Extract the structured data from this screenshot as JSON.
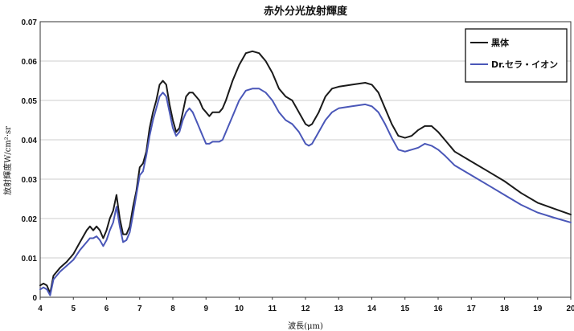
{
  "chart_data": {
    "type": "line",
    "title": "赤外分光放射輝度",
    "xlabel": "波長(μm)",
    "ylabel": "放射輝度W/cm²·sr",
    "xlim": [
      4,
      20
    ],
    "ylim": [
      0,
      0.07
    ],
    "x_ticks": [
      "4",
      "5",
      "6",
      "7",
      "8",
      "9",
      "10",
      "11",
      "12",
      "13",
      "14",
      "15",
      "16",
      "17",
      "18",
      "19",
      "20"
    ],
    "y_ticks": [
      "0",
      "0.01",
      "0.02",
      "0.03",
      "0.04",
      "0.05",
      "0.06",
      "0.07"
    ],
    "grid": true,
    "legend_position": "top-right",
    "series": [
      {
        "name": "黒体",
        "color": "#1a1a1a",
        "points": [
          [
            4.0,
            0.003
          ],
          [
            4.1,
            0.0035
          ],
          [
            4.2,
            0.003
          ],
          [
            4.3,
            0.001
          ],
          [
            4.4,
            0.0055
          ],
          [
            4.6,
            0.0075
          ],
          [
            4.8,
            0.009
          ],
          [
            5.0,
            0.011
          ],
          [
            5.2,
            0.014
          ],
          [
            5.4,
            0.017
          ],
          [
            5.5,
            0.018
          ],
          [
            5.6,
            0.017
          ],
          [
            5.7,
            0.018
          ],
          [
            5.8,
            0.017
          ],
          [
            5.9,
            0.015
          ],
          [
            6.0,
            0.017
          ],
          [
            6.1,
            0.02
          ],
          [
            6.2,
            0.022
          ],
          [
            6.3,
            0.026
          ],
          [
            6.4,
            0.02
          ],
          [
            6.5,
            0.016
          ],
          [
            6.6,
            0.016
          ],
          [
            6.7,
            0.018
          ],
          [
            6.8,
            0.023
          ],
          [
            6.9,
            0.027
          ],
          [
            7.0,
            0.033
          ],
          [
            7.1,
            0.034
          ],
          [
            7.2,
            0.037
          ],
          [
            7.3,
            0.043
          ],
          [
            7.4,
            0.047
          ],
          [
            7.5,
            0.05
          ],
          [
            7.6,
            0.054
          ],
          [
            7.7,
            0.055
          ],
          [
            7.8,
            0.054
          ],
          [
            7.9,
            0.049
          ],
          [
            8.0,
            0.045
          ],
          [
            8.1,
            0.042
          ],
          [
            8.2,
            0.043
          ],
          [
            8.3,
            0.047
          ],
          [
            8.4,
            0.051
          ],
          [
            8.5,
            0.052
          ],
          [
            8.6,
            0.052
          ],
          [
            8.7,
            0.051
          ],
          [
            8.8,
            0.05
          ],
          [
            8.9,
            0.048
          ],
          [
            9.0,
            0.047
          ],
          [
            9.1,
            0.046
          ],
          [
            9.2,
            0.047
          ],
          [
            9.3,
            0.047
          ],
          [
            9.4,
            0.047
          ],
          [
            9.5,
            0.048
          ],
          [
            9.6,
            0.05
          ],
          [
            9.8,
            0.055
          ],
          [
            10.0,
            0.059
          ],
          [
            10.2,
            0.062
          ],
          [
            10.4,
            0.0625
          ],
          [
            10.6,
            0.062
          ],
          [
            10.8,
            0.06
          ],
          [
            11.0,
            0.057
          ],
          [
            11.2,
            0.053
          ],
          [
            11.4,
            0.051
          ],
          [
            11.6,
            0.05
          ],
          [
            11.8,
            0.047
          ],
          [
            12.0,
            0.044
          ],
          [
            12.1,
            0.0435
          ],
          [
            12.2,
            0.044
          ],
          [
            12.4,
            0.047
          ],
          [
            12.6,
            0.051
          ],
          [
            12.8,
            0.053
          ],
          [
            13.0,
            0.0535
          ],
          [
            13.4,
            0.054
          ],
          [
            13.8,
            0.0545
          ],
          [
            14.0,
            0.054
          ],
          [
            14.2,
            0.052
          ],
          [
            14.4,
            0.048
          ],
          [
            14.6,
            0.044
          ],
          [
            14.8,
            0.041
          ],
          [
            15.0,
            0.0405
          ],
          [
            15.2,
            0.041
          ],
          [
            15.4,
            0.0425
          ],
          [
            15.6,
            0.0435
          ],
          [
            15.8,
            0.0435
          ],
          [
            16.0,
            0.042
          ],
          [
            16.2,
            0.04
          ],
          [
            16.5,
            0.037
          ],
          [
            17.0,
            0.0345
          ],
          [
            17.5,
            0.032
          ],
          [
            18.0,
            0.0295
          ],
          [
            18.5,
            0.0265
          ],
          [
            19.0,
            0.024
          ],
          [
            19.5,
            0.0225
          ],
          [
            20.0,
            0.021
          ]
        ]
      },
      {
        "name": "Dr.セラ・イオン",
        "color": "#4a57b8",
        "points": [
          [
            4.0,
            0.002
          ],
          [
            4.1,
            0.0025
          ],
          [
            4.2,
            0.002
          ],
          [
            4.3,
            0.0005
          ],
          [
            4.4,
            0.0045
          ],
          [
            4.6,
            0.0065
          ],
          [
            4.8,
            0.008
          ],
          [
            5.0,
            0.0095
          ],
          [
            5.2,
            0.012
          ],
          [
            5.4,
            0.014
          ],
          [
            5.5,
            0.015
          ],
          [
            5.6,
            0.015
          ],
          [
            5.7,
            0.0155
          ],
          [
            5.8,
            0.0145
          ],
          [
            5.9,
            0.013
          ],
          [
            6.0,
            0.0145
          ],
          [
            6.1,
            0.017
          ],
          [
            6.2,
            0.019
          ],
          [
            6.3,
            0.023
          ],
          [
            6.4,
            0.018
          ],
          [
            6.5,
            0.014
          ],
          [
            6.6,
            0.0145
          ],
          [
            6.7,
            0.0165
          ],
          [
            6.8,
            0.021
          ],
          [
            6.9,
            0.026
          ],
          [
            7.0,
            0.031
          ],
          [
            7.1,
            0.032
          ],
          [
            7.2,
            0.036
          ],
          [
            7.3,
            0.041
          ],
          [
            7.4,
            0.045
          ],
          [
            7.5,
            0.048
          ],
          [
            7.6,
            0.051
          ],
          [
            7.7,
            0.052
          ],
          [
            7.8,
            0.051
          ],
          [
            7.9,
            0.047
          ],
          [
            8.0,
            0.043
          ],
          [
            8.1,
            0.041
          ],
          [
            8.2,
            0.042
          ],
          [
            8.3,
            0.045
          ],
          [
            8.4,
            0.047
          ],
          [
            8.5,
            0.048
          ],
          [
            8.6,
            0.047
          ],
          [
            8.7,
            0.045
          ],
          [
            8.8,
            0.043
          ],
          [
            8.9,
            0.041
          ],
          [
            9.0,
            0.039
          ],
          [
            9.1,
            0.039
          ],
          [
            9.2,
            0.0395
          ],
          [
            9.3,
            0.0395
          ],
          [
            9.4,
            0.0395
          ],
          [
            9.5,
            0.04
          ],
          [
            9.6,
            0.042
          ],
          [
            9.8,
            0.046
          ],
          [
            10.0,
            0.05
          ],
          [
            10.2,
            0.0525
          ],
          [
            10.4,
            0.053
          ],
          [
            10.6,
            0.053
          ],
          [
            10.8,
            0.052
          ],
          [
            11.0,
            0.05
          ],
          [
            11.2,
            0.047
          ],
          [
            11.4,
            0.045
          ],
          [
            11.6,
            0.044
          ],
          [
            11.8,
            0.042
          ],
          [
            12.0,
            0.039
          ],
          [
            12.1,
            0.0385
          ],
          [
            12.2,
            0.039
          ],
          [
            12.4,
            0.042
          ],
          [
            12.6,
            0.045
          ],
          [
            12.8,
            0.047
          ],
          [
            13.0,
            0.048
          ],
          [
            13.4,
            0.0485
          ],
          [
            13.8,
            0.049
          ],
          [
            14.0,
            0.0485
          ],
          [
            14.2,
            0.047
          ],
          [
            14.4,
            0.044
          ],
          [
            14.6,
            0.0405
          ],
          [
            14.8,
            0.0375
          ],
          [
            15.0,
            0.037
          ],
          [
            15.2,
            0.0375
          ],
          [
            15.4,
            0.038
          ],
          [
            15.6,
            0.039
          ],
          [
            15.8,
            0.0385
          ],
          [
            16.0,
            0.0375
          ],
          [
            16.2,
            0.036
          ],
          [
            16.5,
            0.0335
          ],
          [
            17.0,
            0.031
          ],
          [
            17.5,
            0.0285
          ],
          [
            18.0,
            0.026
          ],
          [
            18.5,
            0.0235
          ],
          [
            19.0,
            0.0215
          ],
          [
            19.5,
            0.0202
          ],
          [
            20.0,
            0.019
          ]
        ]
      }
    ]
  }
}
